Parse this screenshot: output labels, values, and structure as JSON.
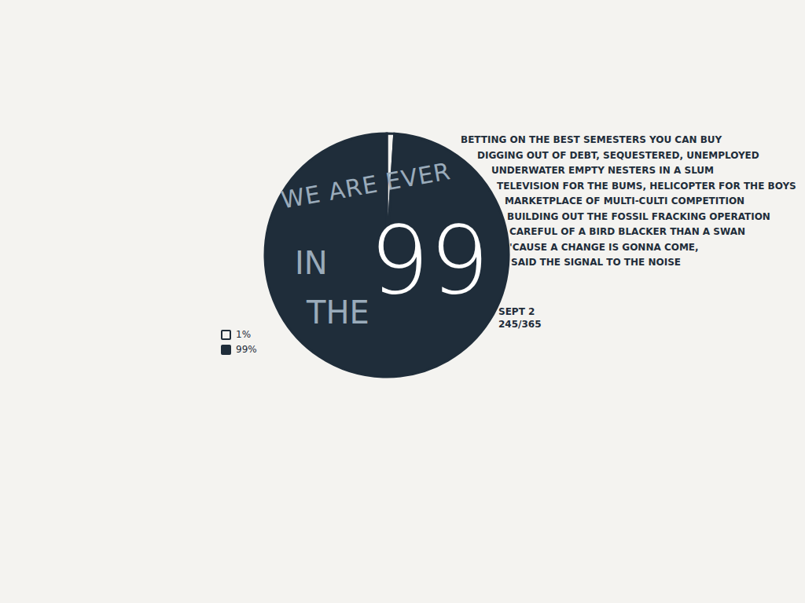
{
  "chart_data": {
    "type": "pie",
    "categories": [
      "1%",
      "99%"
    ],
    "values": [
      1,
      99
    ],
    "colors": [
      "#f4f3f0",
      "#1f2d3a"
    ],
    "annotations": [
      "WE ARE EVER",
      "IN",
      "THE"
    ],
    "center_label": "99",
    "lyrics": [
      "BETTING ON THE BEST SEMESTERS YOU CAN BUY",
      "DIGGING OUT OF DEBT, SEQUESTERED, UNEMPLOYED",
      "UNDERWATER EMPTY NESTERS IN A SLUM",
      "TELEVISION FOR THE BUMS, HELICOPTER FOR THE BOYS",
      "MARKETPLACE OF MULTI-CULTI COMPETITION",
      "BUILDING OUT THE FOSSIL FRACKING OPERATION",
      "CAREFUL OF A BIRD BLACKER THAN A SWAN",
      "'CAUSE A CHANGE IS GONNA COME,",
      "SAID THE SIGNAL TO THE NOISE"
    ],
    "date": "SEPT 2",
    "day": "245/365"
  }
}
